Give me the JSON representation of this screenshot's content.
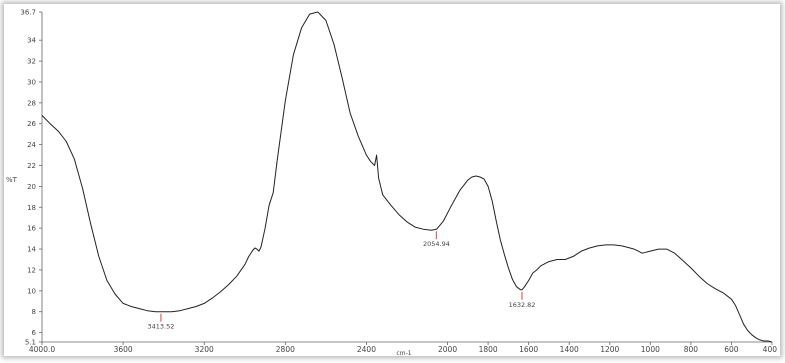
{
  "chart_data": {
    "type": "line",
    "xlabel": "cm-1",
    "ylabel": "%T",
    "xlim": [
      4000,
      400
    ],
    "ylim": [
      5.1,
      36.7
    ],
    "grid": false,
    "x_ticks": [
      {
        "value": 4000,
        "label": "4000.0"
      },
      {
        "value": 3600,
        "label": "3600"
      },
      {
        "value": 3200,
        "label": "3200"
      },
      {
        "value": 2800,
        "label": "2800"
      },
      {
        "value": 2400,
        "label": "2400"
      },
      {
        "value": 2000,
        "label": "2000"
      },
      {
        "value": 1800,
        "label": "1800"
      },
      {
        "value": 1600,
        "label": "1600"
      },
      {
        "value": 1400,
        "label": "1400"
      },
      {
        "value": 1200,
        "label": "1200"
      },
      {
        "value": 1000,
        "label": "1000"
      },
      {
        "value": 800,
        "label": "800"
      },
      {
        "value": 600,
        "label": "600"
      },
      {
        "value": 400,
        "label": "400"
      }
    ],
    "y_ticks": [
      {
        "value": 36.7,
        "label": "36.7"
      },
      {
        "value": 34,
        "label": "34"
      },
      {
        "value": 32,
        "label": "32"
      },
      {
        "value": 30,
        "label": "30"
      },
      {
        "value": 28,
        "label": "28"
      },
      {
        "value": 26,
        "label": "26"
      },
      {
        "value": 24,
        "label": "24"
      },
      {
        "value": 22,
        "label": "22"
      },
      {
        "value": 20,
        "label": "20"
      },
      {
        "value": 18,
        "label": "18"
      },
      {
        "value": 16,
        "label": "16"
      },
      {
        "value": 14,
        "label": "14"
      },
      {
        "value": 12,
        "label": "12"
      },
      {
        "value": 10,
        "label": "10"
      },
      {
        "value": 8,
        "label": "8"
      },
      {
        "value": 6,
        "label": "6"
      },
      {
        "value": 5.1,
        "label": "5.1"
      }
    ],
    "series": [
      {
        "color": "#222222",
        "x": [
          4000,
          3960,
          3920,
          3880,
          3840,
          3800,
          3760,
          3720,
          3680,
          3640,
          3600,
          3560,
          3520,
          3480,
          3440,
          3400,
          3360,
          3320,
          3280,
          3240,
          3200,
          3160,
          3120,
          3080,
          3040,
          3000,
          2980,
          2960,
          2950,
          2940,
          2930,
          2920,
          2900,
          2880,
          2860,
          2840,
          2800,
          2760,
          2720,
          2680,
          2640,
          2600,
          2560,
          2520,
          2480,
          2440,
          2400,
          2380,
          2360,
          2350,
          2340,
          2320,
          2280,
          2240,
          2200,
          2160,
          2120,
          2080,
          2054,
          2020,
          1980,
          1940,
          1900,
          1880,
          1860,
          1840,
          1820,
          1800,
          1780,
          1760,
          1740,
          1720,
          1700,
          1680,
          1660,
          1640,
          1633,
          1620,
          1600,
          1580,
          1560,
          1540,
          1500,
          1460,
          1420,
          1380,
          1340,
          1300,
          1260,
          1220,
          1180,
          1140,
          1100,
          1080,
          1060,
          1040,
          1000,
          960,
          920,
          880,
          840,
          800,
          760,
          720,
          680,
          640,
          600,
          580,
          560,
          540,
          520,
          500,
          480,
          460,
          440,
          420,
          400
        ],
        "y": [
          26.8,
          26.0,
          25.3,
          24.3,
          22.6,
          19.8,
          16.4,
          13.3,
          11.0,
          9.7,
          8.8,
          8.5,
          8.3,
          8.1,
          8.0,
          8.0,
          8.0,
          8.1,
          8.3,
          8.5,
          8.8,
          9.3,
          9.9,
          10.6,
          11.4,
          12.5,
          13.3,
          13.9,
          14.1,
          14.0,
          13.8,
          14.2,
          16.0,
          18.2,
          19.4,
          22.5,
          28.2,
          32.6,
          35.2,
          36.5,
          36.7,
          35.9,
          33.6,
          30.4,
          27.0,
          24.8,
          23.0,
          22.4,
          22.0,
          23.0,
          20.8,
          19.2,
          18.2,
          17.3,
          16.6,
          16.1,
          15.9,
          15.8,
          15.9,
          16.7,
          18.2,
          19.6,
          20.6,
          20.9,
          21.0,
          20.9,
          20.7,
          20.0,
          18.6,
          16.7,
          14.9,
          13.5,
          12.2,
          11.1,
          10.4,
          10.1,
          10.1,
          10.4,
          11.0,
          11.7,
          12.0,
          12.4,
          12.8,
          13.0,
          13.0,
          13.3,
          13.8,
          14.1,
          14.3,
          14.4,
          14.4,
          14.3,
          14.1,
          14.0,
          13.8,
          13.6,
          13.8,
          14.0,
          14.0,
          13.6,
          12.9,
          12.2,
          11.4,
          10.7,
          10.2,
          9.8,
          9.2,
          8.6,
          7.7,
          6.8,
          6.2,
          5.8,
          5.5,
          5.3,
          5.2,
          5.2,
          5.1
        ]
      }
    ],
    "annotations": [
      {
        "x": 3413.52,
        "y": 8.0,
        "label": "3413.52",
        "marker_color": "#e06060"
      },
      {
        "x": 2054.94,
        "y": 15.9,
        "label": "2054.94",
        "marker_color": "#e06060"
      },
      {
        "x": 1632.82,
        "y": 10.1,
        "label": "1632.82",
        "marker_color": "#e06060"
      }
    ]
  }
}
